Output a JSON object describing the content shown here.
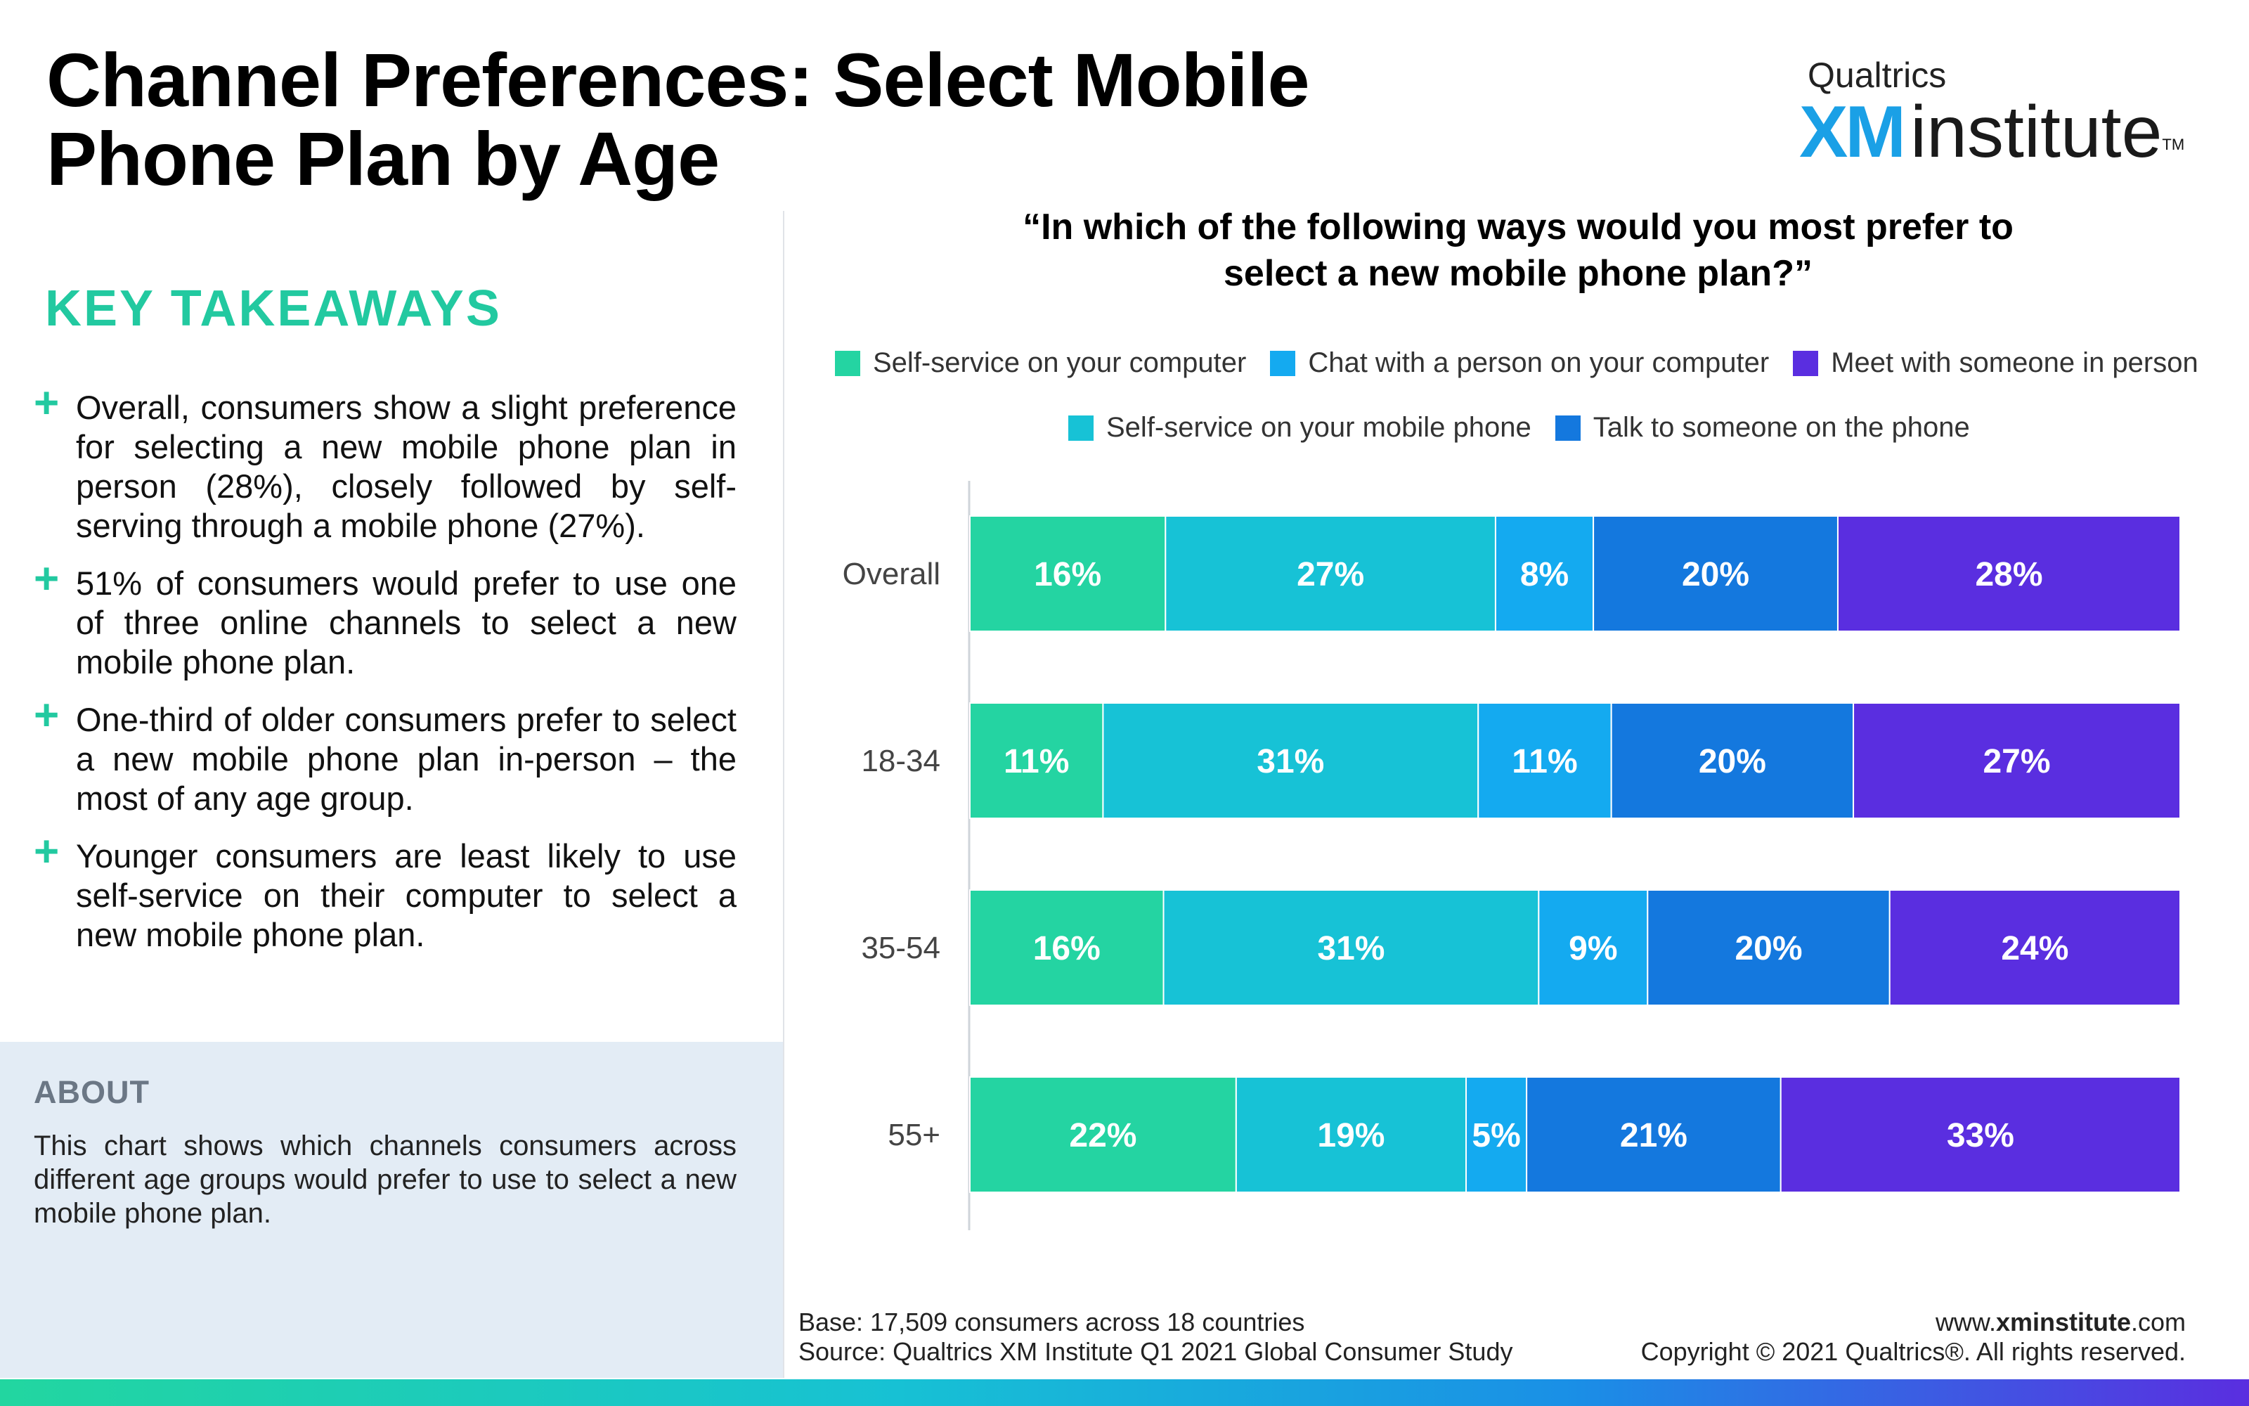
{
  "header": {
    "title": "Channel Preferences: Select Mobile Phone Plan by Age",
    "logo_top": "Qualtrics",
    "logo_xm": "XM",
    "logo_inst": "institute",
    "logo_tm": "TM"
  },
  "takeaways": {
    "title": "KEY TAKEAWAYS",
    "items": [
      "Overall, consumers show a slight preference for selecting a new mobile phone plan in person (28%), closely followed by self-serving through a mobile phone (27%).",
      "51% of consumers would prefer to use one of three online channels to select a new mobile phone plan.",
      "One-third of older consumers prefer to select a new mobile phone plan in-person – the most of any age group.",
      "Younger consumers are least likely to use self-service on their computer to select a new mobile phone plan."
    ]
  },
  "about": {
    "heading": "ABOUT",
    "text": "This chart shows which channels consumers across different age groups would prefer to use to select a new mobile phone plan."
  },
  "chart_data": {
    "type": "bar",
    "orientation": "horizontal",
    "stacked": true,
    "title": "“In which of the following ways would you most prefer to select a new mobile phone plan?”",
    "categories": [
      "Overall",
      "18-34",
      "35-54",
      "55+"
    ],
    "series": [
      {
        "name": "Self-service on your computer",
        "values": [
          16,
          11,
          16,
          22
        ],
        "color": "#24d4a2"
      },
      {
        "name": "Self-service on your mobile phone",
        "values": [
          27,
          31,
          31,
          19
        ],
        "color": "#17c2d6"
      },
      {
        "name": "Chat with a person on your computer",
        "values": [
          8,
          11,
          9,
          5
        ],
        "color": "#14aaf0"
      },
      {
        "name": "Talk to someone on the phone",
        "values": [
          20,
          20,
          20,
          21
        ],
        "color": "#1478de"
      },
      {
        "name": "Meet with someone in person",
        "values": [
          28,
          27,
          24,
          33
        ],
        "color": "#5a2ee0"
      }
    ],
    "value_suffix": "%",
    "legend_position": "top",
    "grid": false
  },
  "footer": {
    "base": "Base: 17,509 consumers across 18 countries",
    "source": "Source: Qualtrics XM Institute Q1 2021 Global Consumer Study",
    "site_prefix": "www.",
    "site_bold": "xminstitute",
    "site_suffix": ".com",
    "copyright": "Copyright © 2021 Qualtrics®. All rights reserved."
  }
}
